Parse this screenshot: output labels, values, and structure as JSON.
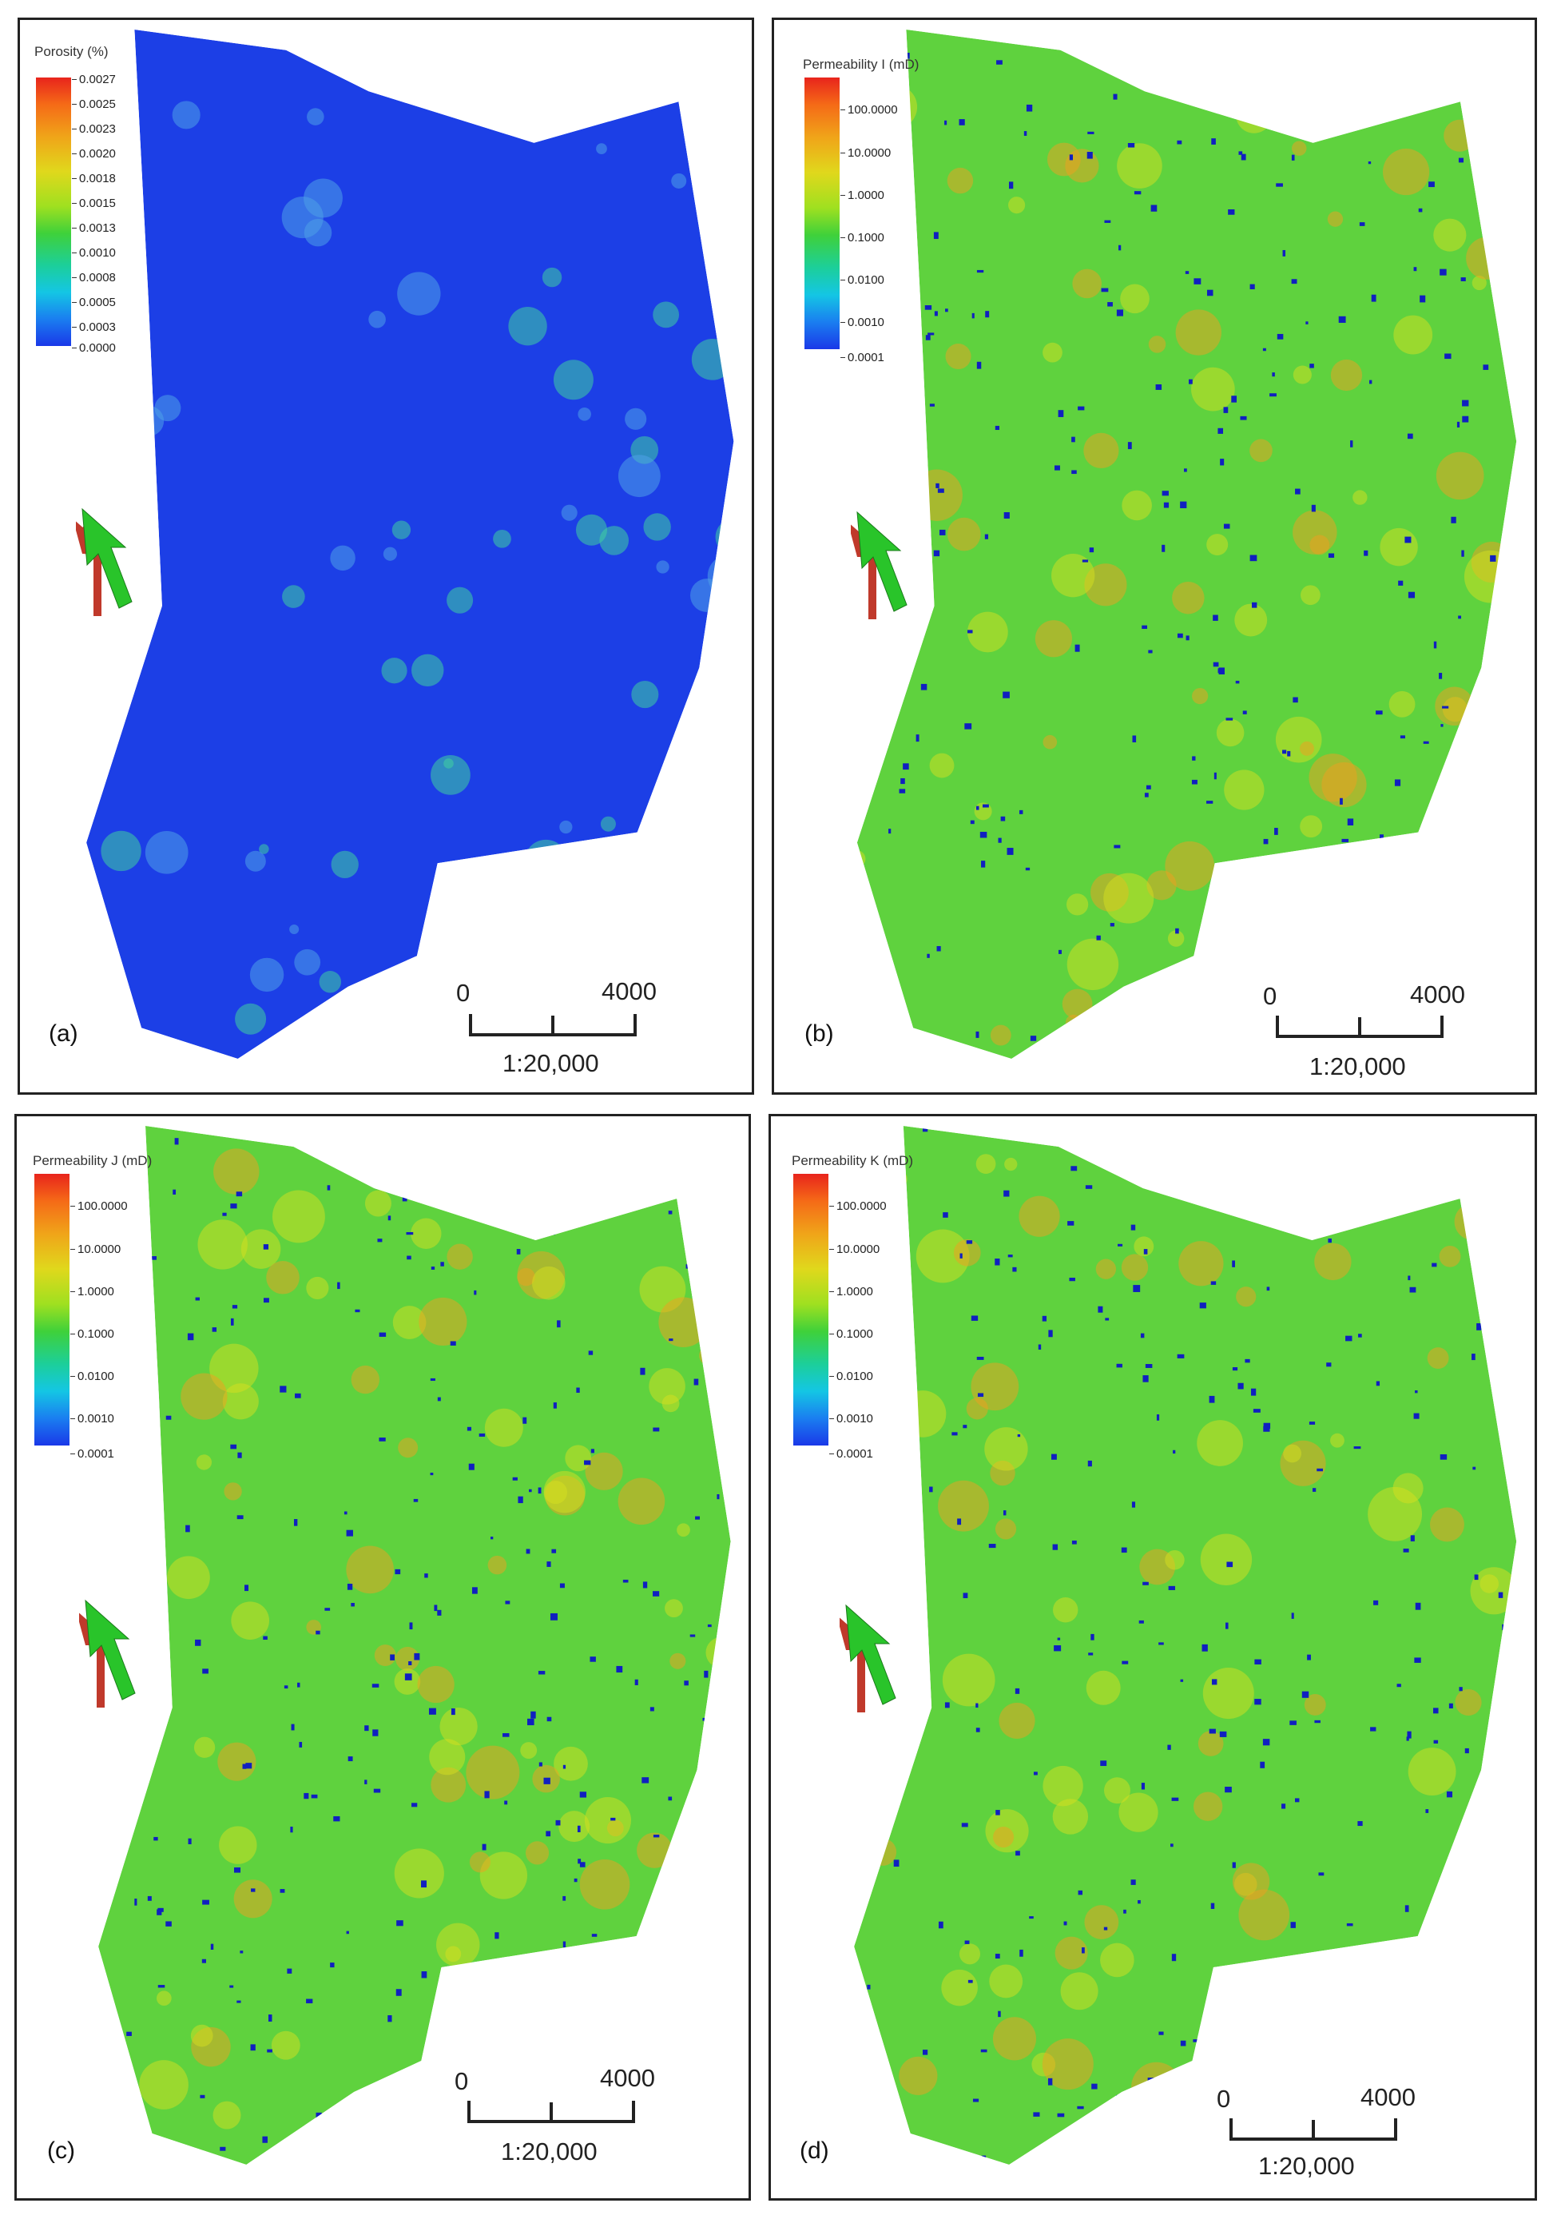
{
  "panels": [
    {
      "label": "(a)",
      "legend": {
        "title": "Porosity (%)",
        "ticks": [
          "0.0027",
          "0.0025",
          "0.0023",
          "0.0020",
          "0.0018",
          "0.0015",
          "0.0013",
          "0.0010",
          "0.0008",
          "0.0005",
          "0.0003",
          "0.0000"
        ]
      },
      "scale": {
        "zero": "0",
        "max": "4000",
        "ratio": "1:20,000"
      },
      "map_fill": "#1c3fe6"
    },
    {
      "label": "(b)",
      "legend": {
        "title": "Permeability I (mD)",
        "ticks": [
          "100.0000",
          "10.0000",
          "1.0000",
          "0.1000",
          "0.0100",
          "0.0010",
          "0.0001"
        ]
      },
      "scale": {
        "zero": "0",
        "max": "4000",
        "ratio": "1:20,000"
      },
      "map_fill": "#5fd23e"
    },
    {
      "label": "(c)",
      "legend": {
        "title": "Permeability J (mD)",
        "ticks": [
          "100.0000",
          "10.0000",
          "1.0000",
          "0.1000",
          "0.0100",
          "0.0010",
          "0.0001"
        ]
      },
      "scale": {
        "zero": "0",
        "max": "4000",
        "ratio": "1:20,000"
      },
      "map_fill": "#5fd23e"
    },
    {
      "label": "(d)",
      "legend": {
        "title": "Permeability K (mD)",
        "ticks": [
          "100.0000",
          "10.0000",
          "1.0000",
          "0.1000",
          "0.0100",
          "0.0010",
          "0.0001"
        ]
      },
      "scale": {
        "zero": "0",
        "max": "4000",
        "ratio": "1:20,000"
      },
      "map_fill": "#5fd23e"
    }
  ],
  "colors": {
    "porosity_low": "#1c3fe6",
    "porosity_patch": "#3fd0a0",
    "perm_base": "#5fd23e",
    "perm_high": "#f0a020",
    "perm_low": "#1020c0",
    "arrow_face": "#29c42a",
    "arrow_side": "#c0392b"
  }
}
